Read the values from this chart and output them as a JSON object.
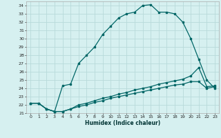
{
  "xlabel": "Humidex (Indice chaleur)",
  "bg_color": "#d6f0f0",
  "grid_color": "#b8dada",
  "line_color": "#006666",
  "xlim": [
    -0.5,
    23.5
  ],
  "ylim": [
    21,
    34.5
  ],
  "xticks": [
    0,
    1,
    2,
    3,
    4,
    5,
    6,
    7,
    8,
    9,
    10,
    11,
    12,
    13,
    14,
    15,
    16,
    17,
    18,
    19,
    20,
    21,
    22,
    23
  ],
  "yticks": [
    21,
    22,
    23,
    24,
    25,
    26,
    27,
    28,
    29,
    30,
    31,
    32,
    33,
    34
  ],
  "curve1_x": [
    0,
    1,
    2,
    3,
    4,
    5,
    6,
    7,
    8,
    9,
    10,
    11,
    12,
    13,
    14,
    15,
    16,
    17,
    18,
    19,
    20,
    21,
    22,
    23
  ],
  "curve1_y": [
    22.2,
    22.2,
    21.5,
    21.2,
    24.3,
    24.5,
    27.0,
    28.0,
    29.0,
    30.5,
    31.5,
    32.5,
    33.0,
    33.2,
    34.0,
    34.1,
    33.2,
    33.2,
    33.0,
    32.0,
    30.0,
    27.5,
    25.0,
    24.0
  ],
  "curve2_x": [
    0,
    1,
    2,
    3,
    4,
    5,
    6,
    7,
    8,
    9,
    10,
    11,
    12,
    13,
    14,
    15,
    16,
    17,
    18,
    19,
    20,
    21,
    22,
    23
  ],
  "curve2_y": [
    22.2,
    22.2,
    21.5,
    21.2,
    21.2,
    21.5,
    22.0,
    22.2,
    22.5,
    22.8,
    23.0,
    23.3,
    23.5,
    23.8,
    24.0,
    24.2,
    24.5,
    24.7,
    24.9,
    25.1,
    25.5,
    26.5,
    24.2,
    24.3
  ],
  "curve3_x": [
    0,
    1,
    2,
    3,
    4,
    5,
    6,
    7,
    8,
    9,
    10,
    11,
    12,
    13,
    14,
    15,
    16,
    17,
    18,
    19,
    20,
    21,
    22,
    23
  ],
  "curve3_y": [
    22.2,
    22.2,
    21.5,
    21.2,
    21.2,
    21.5,
    21.8,
    22.0,
    22.3,
    22.5,
    22.8,
    23.0,
    23.2,
    23.4,
    23.6,
    23.8,
    24.0,
    24.2,
    24.4,
    24.5,
    24.8,
    24.8,
    24.0,
    24.2
  ]
}
